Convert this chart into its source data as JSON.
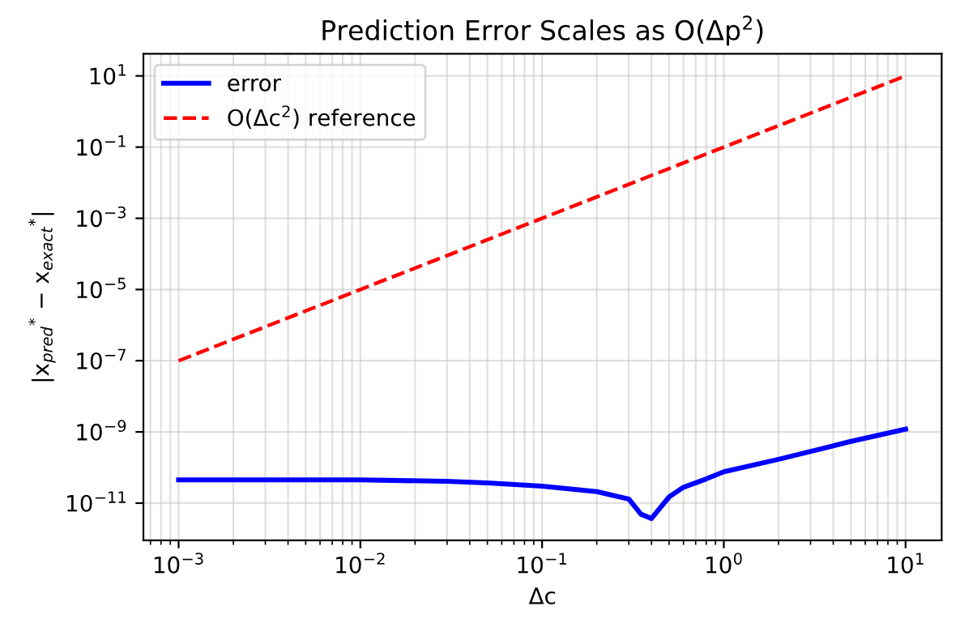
{
  "chart_data": {
    "type": "line",
    "title": "Prediction Error Scales as O(Δp$^{2}$)",
    "xlabel": "Δc",
    "ylabel": "|x$_{pred}$$^{*}$ − x$_{exact}$$^{*}$|",
    "log": "xy",
    "grid": true,
    "legend": "top left",
    "xlim": [
      0.00064,
      15.8
    ],
    "ylim": [
      9e-13,
      42
    ],
    "xticks": [
      {
        "value": 0.001,
        "label": "10$^{−3}$"
      },
      {
        "value": 0.01,
        "label": "10$^{−2}$"
      },
      {
        "value": 0.1,
        "label": "10$^{−1}$"
      },
      {
        "value": 1,
        "label": "10$^{0}$"
      },
      {
        "value": 10,
        "label": "10$^{1}$"
      }
    ],
    "yticks": [
      {
        "value": 1e-11,
        "label": "10$^{−11}$"
      },
      {
        "value": 1e-09,
        "label": "10$^{−9}$"
      },
      {
        "value": 1e-07,
        "label": "10$^{−7}$"
      },
      {
        "value": 1e-05,
        "label": "10$^{−5}$"
      },
      {
        "value": 0.001,
        "label": "10$^{−3}$"
      },
      {
        "value": 0.1,
        "label": "10$^{−1}$"
      },
      {
        "value": 10,
        "label": "10$^{1}$"
      }
    ],
    "series": [
      {
        "name": "error",
        "color": "#0000ff",
        "line_style": "solid",
        "x": [
          0.001,
          0.01,
          0.03,
          0.05,
          0.1,
          0.2,
          0.3,
          0.35,
          0.4,
          0.5,
          0.6,
          0.8,
          1,
          2,
          5,
          10
        ],
        "values": [
          4.5e-11,
          4.5e-11,
          4.1e-11,
          3.7e-11,
          3e-11,
          2.1e-11,
          1.3e-11,
          4.9e-12,
          3.7e-12,
          1.5e-11,
          2.8e-11,
          4.8e-11,
          7.6e-11,
          1.7e-10,
          5.4e-10,
          1.2e-09
        ]
      },
      {
        "name": "O(Δc$^{2}$) reference",
        "color": "#ff0000",
        "line_style": "dashed",
        "x": [
          0.001,
          0.01,
          0.1,
          1,
          10
        ],
        "values": [
          1e-07,
          1e-05,
          0.001,
          0.1,
          10
        ]
      }
    ]
  }
}
